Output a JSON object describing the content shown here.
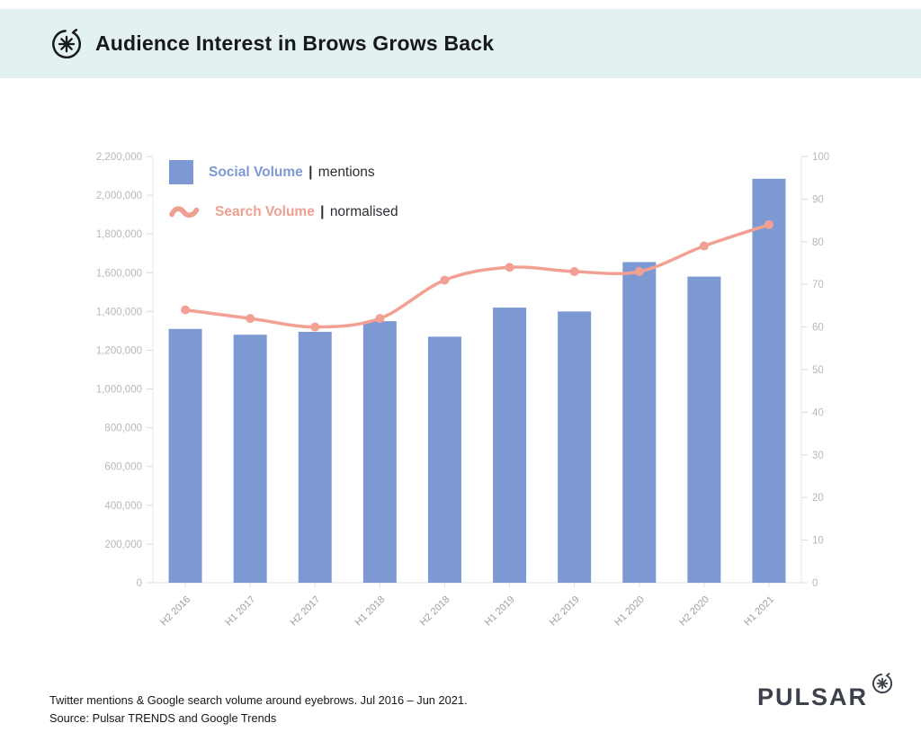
{
  "header": {
    "title": "Audience Interest in Brows Grows Back"
  },
  "legend": {
    "separator": "|",
    "social_qualifier": "mentions",
    "search_qualifier": "normalised"
  },
  "chart_data": {
    "type": "bar+line combo",
    "title": "Audience Interest in Brows Grows Back",
    "categories": [
      "H2 2016",
      "H1 2017",
      "H2 2017",
      "H1 2018",
      "H2 2018",
      "H1 2019",
      "H2 2019",
      "H1 2020",
      "H2 2020",
      "H1 2021"
    ],
    "series": [
      {
        "name": "Social Volume",
        "unit": "mentions",
        "type": "bar",
        "axis": "left",
        "color": "#7d99d4",
        "values": [
          1310000,
          1280000,
          1295000,
          1350000,
          1270000,
          1420000,
          1400000,
          1655000,
          1580000,
          2085000
        ]
      },
      {
        "name": "Search Volume",
        "unit": "normalised",
        "type": "line",
        "axis": "right",
        "color": "#f2a093",
        "values": [
          64,
          62,
          60,
          62,
          71,
          74,
          73,
          73,
          79,
          84
        ]
      }
    ],
    "left_axis": {
      "min": 0,
      "max": 2200000,
      "step": 200000
    },
    "right_axis": {
      "min": 0,
      "max": 100,
      "step": 10
    },
    "grid": false,
    "legend_position": "top-left-inside"
  },
  "footer": {
    "caption_line1": "Twitter mentions & Google search volume around eyebrows. Jul 2016 – Jun 2021.",
    "caption_line2": "Source: Pulsar TRENDS and Google Trends",
    "brand": "PULSAR"
  },
  "colors": {
    "header_bg": "#e4f1f2",
    "bar": "#7d99d4",
    "line": "#f2a093",
    "brand": "#3b404b"
  }
}
